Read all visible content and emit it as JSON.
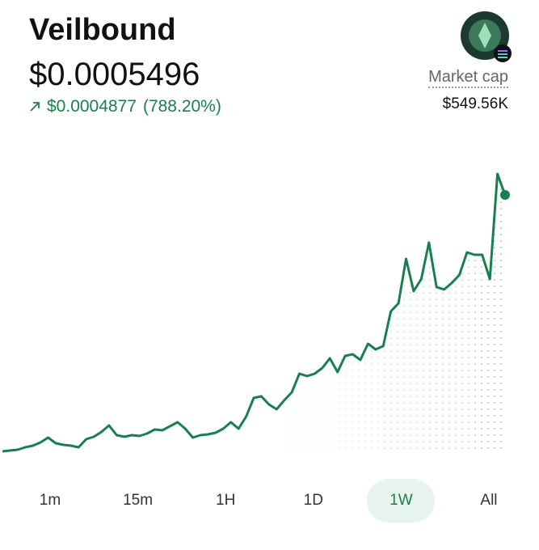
{
  "header": {
    "title": "Veilbound",
    "price": "$0.0005496",
    "change": "$0.0004877",
    "change_percent": "(788.20%)",
    "market_cap_label": "Market cap",
    "market_cap": "$549.56K"
  },
  "chart": {
    "type": "line",
    "color": "#1a7f4e",
    "ylim": [
      5.88e-05,
      0.0006127
    ],
    "values": [
      6.19e-05,
      6.34e-05,
      6.5e-05,
      6.96e-05,
      7.27e-05,
      7.88e-05,
      8.81e-05,
      7.73e-05,
      7.42e-05,
      7.27e-05,
      6.96e-05,
      8.5e-05,
      8.96e-05,
      9.88e-05,
      0.0001111,
      9.27e-05,
      8.96e-05,
      9.27e-05,
      9.11e-05,
      9.57e-05,
      0.0001034,
      0.0001019,
      0.0001096,
      0.0001173,
      0.000105,
      8.81e-05,
      9.27e-05,
      9.42e-05,
      9.73e-05,
      0.000105,
      0.0001173,
      0.000105,
      0.0001281,
      0.0001634,
      0.0001665,
      0.0001511,
      0.0001419,
      0.0001588,
      0.0001742,
      0.0002096,
      0.000205,
      0.0002096,
      0.0002204,
      0.0002388,
      0.0002127,
      0.0002434,
      0.0002465,
      0.0002358,
      0.0002665,
      0.0002558,
      0.000262,
      0.0003281,
      0.0003434,
      0.0004281,
      0.0003665,
      0.0003896,
      0.0004588,
      0.0003743,
      0.0003697,
      0.000382,
      0.0003974,
      0.0004404,
      0.0004358,
      0.0004358,
      0.0003896,
      0.0005896,
      0.0005496
    ]
  },
  "tabs": {
    "items": [
      "1m",
      "15m",
      "1H",
      "1D",
      "1W",
      "All"
    ],
    "selected": 4
  }
}
